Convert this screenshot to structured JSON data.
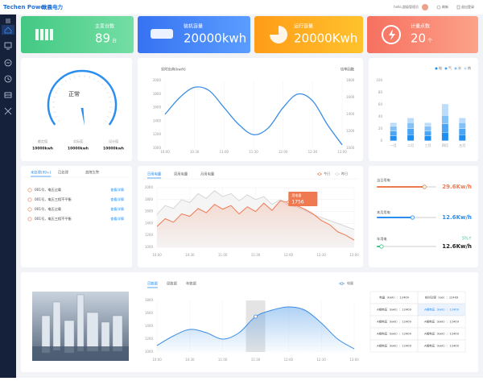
{
  "header": {
    "logo": "Techen Power",
    "logo_cn": "致晨电力",
    "user": "hello,超级管理员",
    "refresh": "刷新",
    "logout": "退出登录"
  },
  "kpis": [
    {
      "label": "主变台数",
      "value": 89,
      "unit": "台"
    },
    {
      "label": "装机容量",
      "value": "20000kwh"
    },
    {
      "label": "运行容量",
      "value": "20000Kwh"
    },
    {
      "label": "计量点数",
      "value": 20,
      "unit": "个"
    }
  ],
  "gauge": {
    "status": "正常",
    "items": [
      {
        "label": "额定值",
        "value": "10000kwh"
      },
      {
        "label": "实际值",
        "value": "10000kwh"
      },
      {
        "label": "设计值",
        "value": "10000kwh"
      }
    ]
  },
  "load_chart": {
    "type": "line",
    "y_label": "实时负荷(kw/h)",
    "y2_label": "功率因数",
    "categories": [
      "10:00",
      null,
      "10:30",
      null,
      "11:00",
      null,
      "11:30",
      null,
      "12:00",
      null,
      "12:30",
      null,
      "13:00"
    ],
    "values": [
      1500,
      1750,
      1900,
      1850,
      1600,
      1350,
      1200,
      1300,
      1600,
      1800,
      1700,
      1350,
      1050
    ],
    "color": "#3a8ee6",
    "ylim": [
      1000,
      2000
    ],
    "yticks": [
      1000,
      1200,
      1400,
      1600,
      1800,
      2000
    ],
    "y2lim": [
      1000,
      1800
    ],
    "y2ticks": [
      1000,
      1200,
      1400,
      1600,
      1800
    ]
  },
  "bar_chart": {
    "type": "bar",
    "stacked": true,
    "legend": "top-right",
    "categories": [
      "一月",
      "二月",
      "三月",
      "四月",
      "五月"
    ],
    "series": [
      {
        "name": "电",
        "color": "#1f8ef1",
        "values": [
          8,
          10,
          8,
          14,
          10
        ]
      },
      {
        "name": "气",
        "color": "#4aa6f5",
        "values": [
          8,
          10,
          8,
          14,
          10
        ]
      },
      {
        "name": "水",
        "color": "#82c2f8",
        "values": [
          8,
          10,
          8,
          14,
          10
        ]
      },
      {
        "name": "热",
        "color": "#bcdcfb",
        "values": [
          6,
          8,
          6,
          19,
          8
        ]
      }
    ],
    "ylim": [
      0,
      100
    ],
    "yticks": [
      0,
      20,
      40,
      60,
      80,
      100
    ]
  },
  "alarms": {
    "tabs": [
      "未处理(99+)",
      "已处理",
      "故障告警"
    ],
    "items": [
      {
        "text": "001号，电压过载",
        "action": "查看详情"
      },
      {
        "text": "001号，电压三相不平衡",
        "action": "查看详情"
      },
      {
        "text": "001号，电压过载",
        "action": "查看详情"
      },
      {
        "text": "001号，电压三相不平衡",
        "action": "查看详情"
      }
    ]
  },
  "usage_chart": {
    "type": "area",
    "tabs": [
      "日用电量",
      "周用电量",
      "月用电量"
    ],
    "categories": [
      "10:00",
      null,
      null,
      null,
      "10:30",
      null,
      null,
      null,
      "11:00",
      null,
      null,
      null,
      "11:30",
      null,
      null,
      null,
      "12:00",
      null,
      null,
      null,
      "12:30",
      null,
      null,
      null,
      "13:00"
    ],
    "series": [
      {
        "name": "今日",
        "color": "#ef7a52",
        "values": [
          1350,
          1480,
          1420,
          1560,
          1520,
          1650,
          1580,
          1720,
          1640,
          1700,
          1560,
          1680,
          1600,
          1740,
          1620,
          1780,
          1756,
          1700,
          1640,
          1560,
          1450,
          1380,
          1260,
          1200,
          1120
        ]
      },
      {
        "name": "昨日",
        "color": "#d6d6d6",
        "values": [
          1550,
          1700,
          1650,
          1800,
          1750,
          1900,
          1820,
          1950,
          1850,
          1900,
          1780,
          1880,
          1800,
          1850,
          1720,
          1800,
          1700,
          1680,
          1620,
          1550,
          1500,
          1450,
          1400,
          1350,
          1300
        ]
      }
    ],
    "ylim": [
      1000,
      2000
    ],
    "yticks": [
      1000,
      1200,
      1400,
      1600,
      1800,
      2000
    ],
    "grid": true,
    "tooltip": {
      "label": "用电量",
      "value": 1756
    }
  },
  "progress": [
    {
      "label": "当日用电",
      "value": "29.6Kw/h",
      "progress": 80,
      "color": "#ef7a52"
    },
    {
      "label": "本月用电",
      "value": "12.6Kw/h",
      "progress": 60,
      "color": "#2a8ef0"
    },
    {
      "label": "年用电",
      "value": "12.6Kw/h",
      "change": "5%↑",
      "progress": 8,
      "color": "#3cc48a"
    }
  ],
  "trend_chart": {
    "type": "area",
    "tabs": [
      "日数据",
      "周数据",
      "年数据"
    ],
    "categories": [
      "10:00",
      null,
      "10:30",
      null,
      "11:00",
      null,
      "11:30",
      null,
      "12:00",
      null,
      "12:30",
      null,
      "13:00"
    ],
    "series": [
      {
        "name": "电量",
        "color": "#3a8ee6",
        "values": [
          1100,
          1250,
          1350,
          1300,
          1200,
          1300,
          1550,
          1650,
          1700,
          1650,
          1450,
          1200,
          1050
        ]
      }
    ],
    "ylim": [
      1000,
      1800
    ],
    "yticks": [
      1000,
      1200,
      1400,
      1600,
      1800
    ]
  },
  "table": {
    "rows": [
      [
        "电量（kwh）：12409",
        "实时功率（kw）：12409"
      ],
      [
        "A相电压（kwh）：12409",
        "A相电压（kwh）：12409"
      ],
      [
        "A相电压（kwh）：12409",
        "A相电压（kwh）：12409"
      ],
      [
        "A相电压（kwh）：12409",
        "A相电压（kwh）：12409"
      ],
      [
        "A相电压（kwh）：12409",
        "A相电压（kwh）：12409"
      ]
    ]
  }
}
